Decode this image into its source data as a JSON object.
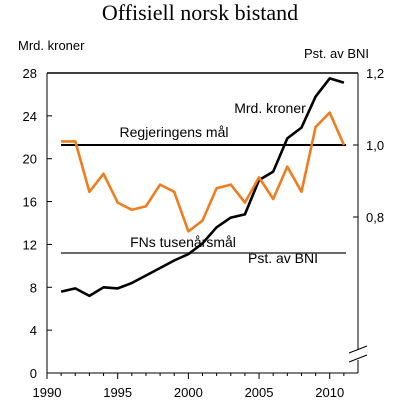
{
  "chart_data": {
    "type": "line",
    "title": "Offisiell norsk bistand",
    "ylabel_left": "Mrd. kroner",
    "ylabel_right": "Pst. av BNI",
    "x": [
      1991,
      1992,
      1993,
      1994,
      1995,
      1996,
      1997,
      1998,
      1999,
      2000,
      2001,
      2002,
      2003,
      2004,
      2005,
      2006,
      2007,
      2008,
      2009,
      2010,
      2011
    ],
    "xlim": [
      1990,
      2012
    ],
    "xticks": [
      "1990",
      "1995",
      "2000",
      "2005",
      "2010"
    ],
    "ylim_left": [
      0,
      28
    ],
    "yticks_left": [
      "0",
      "4",
      "8",
      "12",
      "16",
      "20",
      "24",
      "28"
    ],
    "yticks_right": [
      "0,8",
      "1,0",
      "1,2"
    ],
    "right_axis_range": [
      0.6,
      1.2
    ],
    "series": [
      {
        "name": "Mrd. kroner",
        "axis": "left",
        "color": "#000000",
        "values": [
          7.6,
          7.9,
          7.2,
          8.0,
          7.9,
          8.4,
          9.1,
          9.8,
          10.5,
          11.1,
          12.1,
          13.6,
          14.5,
          14.8,
          18.0,
          18.8,
          21.9,
          22.9,
          25.8,
          27.5,
          27.1
        ]
      },
      {
        "name": "Pst. av BNI",
        "axis": "right",
        "color": "#ed7d1e",
        "values": [
          1.01,
          1.01,
          0.87,
          0.92,
          0.84,
          0.82,
          0.83,
          0.89,
          0.87,
          0.76,
          0.79,
          0.88,
          0.89,
          0.84,
          0.91,
          0.85,
          0.94,
          0.87,
          1.05,
          1.09,
          1.0
        ]
      }
    ],
    "reference_lines": [
      {
        "label": "Regjeringens mål",
        "axis": "right",
        "value": 1.0,
        "color": "#000000"
      },
      {
        "label": "FNs tusenårsmål",
        "axis": "right",
        "value": 0.7,
        "color": "#6a6a6a"
      }
    ]
  }
}
